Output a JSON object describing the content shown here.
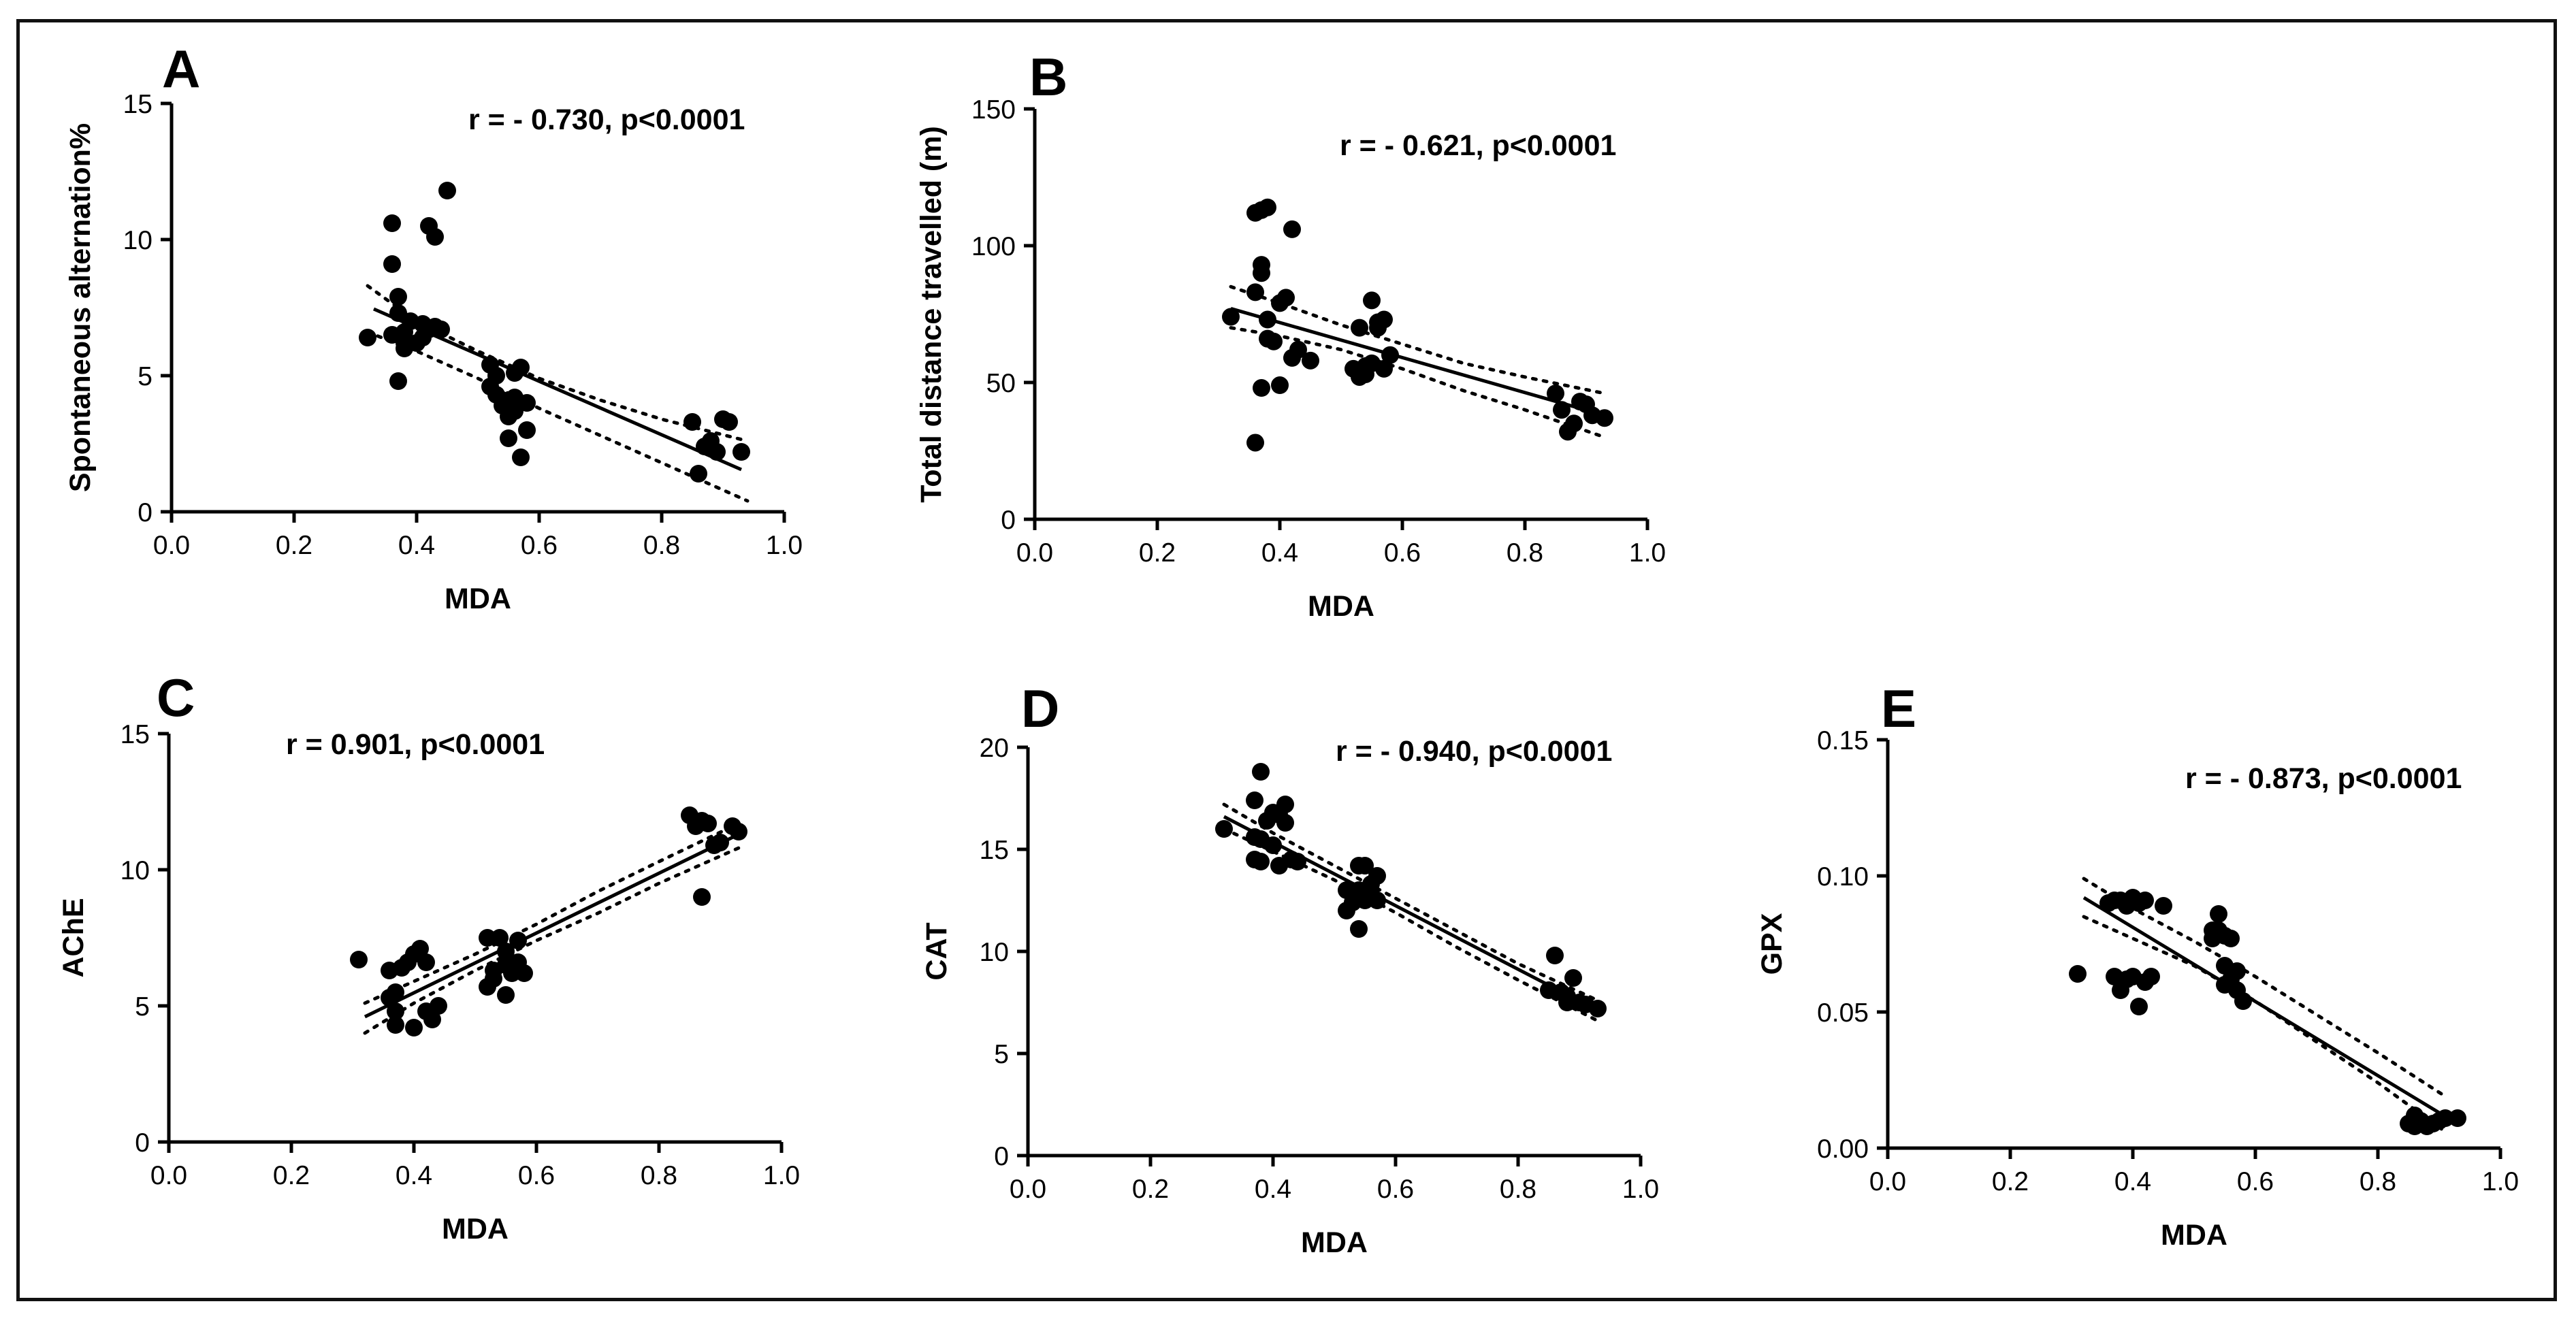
{
  "figure": {
    "title": ""
  },
  "chart_data": [
    {
      "type": "scatter",
      "panel_label": "A",
      "annotation": "r = - 0.730, p<0.0001",
      "xlabel": "MDA",
      "ylabel": "Spontaneous alternation%",
      "xlim": [
        0,
        1.0
      ],
      "ylim": [
        0,
        15
      ],
      "xticks": [
        0.0,
        0.2,
        0.4,
        0.6,
        0.8,
        1.0
      ],
      "xtick_labels": [
        "0.0",
        "0.2",
        "0.4",
        "0.6",
        "0.8",
        "1.0"
      ],
      "yticks": [
        0,
        5,
        10,
        15
      ],
      "ytick_labels": [
        "0",
        "5",
        "10",
        "15"
      ],
      "fit": {
        "x": [
          0.33,
          0.93
        ],
        "y": [
          7.45,
          1.55
        ]
      },
      "ci_upper": {
        "x": [
          0.32,
          0.4,
          0.5,
          0.6,
          0.7,
          0.8,
          0.94
        ],
        "y": [
          8.3,
          7.0,
          5.9,
          4.9,
          4.1,
          3.4,
          2.6
        ]
      },
      "ci_lower": {
        "x": [
          0.32,
          0.4,
          0.5,
          0.6,
          0.7,
          0.8,
          0.94
        ],
        "y": [
          6.6,
          5.9,
          4.9,
          3.8,
          2.8,
          1.8,
          0.4
        ]
      },
      "points": {
        "x": [
          0.32,
          0.36,
          0.36,
          0.37,
          0.37,
          0.38,
          0.38,
          0.38,
          0.39,
          0.4,
          0.41,
          0.42,
          0.43,
          0.42,
          0.43,
          0.44,
          0.45,
          0.37,
          0.41,
          0.36,
          0.52,
          0.53,
          0.53,
          0.54,
          0.54,
          0.55,
          0.55,
          0.56,
          0.56,
          0.56,
          0.57,
          0.57,
          0.58,
          0.58,
          0.52,
          0.85,
          0.86,
          0.87,
          0.88,
          0.89,
          0.9,
          0.91,
          0.93
        ],
        "y": [
          6.4,
          10.6,
          9.1,
          7.9,
          7.3,
          6.6,
          6.2,
          6.0,
          7.0,
          6.2,
          6.4,
          10.5,
          10.1,
          6.7,
          6.8,
          6.7,
          11.8,
          4.8,
          6.9,
          6.5,
          5.4,
          5.0,
          4.3,
          4.1,
          3.9,
          3.5,
          2.7,
          3.7,
          4.2,
          5.1,
          5.3,
          2.0,
          3.0,
          4.0,
          4.6,
          3.3,
          1.4,
          2.4,
          2.6,
          2.2,
          3.4,
          3.3,
          2.2
        ]
      }
    },
    {
      "type": "scatter",
      "panel_label": "B",
      "annotation": "r = - 0.621, p<0.0001",
      "xlabel": "MDA",
      "ylabel": "Total distance travelled (m)",
      "xlim": [
        0,
        1.0
      ],
      "ylim": [
        0,
        150
      ],
      "xticks": [
        0.0,
        0.2,
        0.4,
        0.6,
        0.8,
        1.0
      ],
      "xtick_labels": [
        "0.0",
        "0.2",
        "0.4",
        "0.6",
        "0.8",
        "1.0"
      ],
      "yticks": [
        0,
        50,
        100,
        150
      ],
      "ytick_labels": [
        "0",
        "50",
        "100",
        "150"
      ],
      "fit": {
        "x": [
          0.32,
          0.93
        ],
        "y": [
          77,
          38
        ]
      },
      "ci_upper": {
        "x": [
          0.32,
          0.4,
          0.5,
          0.6,
          0.7,
          0.8,
          0.93
        ],
        "y": [
          85,
          79,
          71,
          64,
          57,
          52,
          46
        ]
      },
      "ci_lower": {
        "x": [
          0.32,
          0.4,
          0.5,
          0.6,
          0.7,
          0.8,
          0.93
        ],
        "y": [
          70,
          67,
          62,
          55,
          47,
          40,
          30
        ]
      },
      "points": {
        "x": [
          0.32,
          0.36,
          0.37,
          0.38,
          0.36,
          0.37,
          0.37,
          0.38,
          0.39,
          0.4,
          0.41,
          0.42,
          0.42,
          0.43,
          0.45,
          0.38,
          0.4,
          0.37,
          0.36,
          0.52,
          0.53,
          0.54,
          0.55,
          0.55,
          0.56,
          0.56,
          0.57,
          0.57,
          0.58,
          0.54,
          0.53,
          0.86,
          0.87,
          0.88,
          0.89,
          0.9,
          0.91,
          0.93,
          0.85
        ],
        "y": [
          74,
          112,
          113,
          114,
          83,
          93,
          90,
          73,
          65,
          79,
          81,
          106,
          59,
          62,
          58,
          66,
          49,
          48,
          28,
          55,
          52,
          53,
          57,
          80,
          72,
          70,
          73,
          55,
          60,
          56,
          70,
          40,
          32,
          35,
          43,
          42,
          38,
          37,
          46
        ]
      }
    },
    {
      "type": "scatter",
      "panel_label": "C",
      "annotation": "r = 0.901, p<0.0001",
      "xlabel": "MDA",
      "ylabel": "AChE",
      "xlim": [
        0,
        1.0
      ],
      "ylim": [
        0,
        15
      ],
      "xticks": [
        0.0,
        0.2,
        0.4,
        0.6,
        0.8,
        1.0
      ],
      "xtick_labels": [
        "0.0",
        "0.2",
        "0.4",
        "0.6",
        "0.8",
        "1.0"
      ],
      "yticks": [
        0,
        5,
        10,
        15
      ],
      "ytick_labels": [
        "0",
        "5",
        "10",
        "15"
      ],
      "fit": {
        "x": [
          0.32,
          0.93
        ],
        "y": [
          4.6,
          11.3
        ]
      },
      "ci_upper": {
        "x": [
          0.32,
          0.4,
          0.5,
          0.6,
          0.7,
          0.8,
          0.93
        ],
        "y": [
          5.1,
          5.9,
          6.9,
          8.0,
          9.2,
          10.3,
          11.7
        ]
      },
      "ci_lower": {
        "x": [
          0.32,
          0.4,
          0.5,
          0.6,
          0.7,
          0.8,
          0.93
        ],
        "y": [
          4.0,
          5.1,
          6.3,
          7.4,
          8.4,
          9.5,
          10.8
        ]
      },
      "points": {
        "x": [
          0.31,
          0.36,
          0.36,
          0.37,
          0.37,
          0.38,
          0.39,
          0.4,
          0.4,
          0.41,
          0.42,
          0.43,
          0.44,
          0.37,
          0.42,
          0.52,
          0.52,
          0.53,
          0.54,
          0.55,
          0.55,
          0.56,
          0.56,
          0.57,
          0.57,
          0.58,
          0.55,
          0.53,
          0.85,
          0.86,
          0.87,
          0.88,
          0.89,
          0.9,
          0.92,
          0.93,
          0.87
        ],
        "y": [
          6.7,
          6.3,
          5.3,
          4.8,
          4.3,
          6.4,
          6.6,
          4.2,
          6.9,
          7.1,
          6.6,
          4.5,
          5.0,
          5.5,
          4.8,
          7.5,
          5.7,
          6.0,
          7.5,
          6.5,
          7.0,
          6.2,
          6.4,
          7.4,
          6.6,
          6.2,
          5.4,
          6.3,
          12.0,
          11.6,
          11.8,
          11.7,
          10.9,
          11.0,
          11.6,
          11.4,
          9.0
        ]
      }
    },
    {
      "type": "scatter",
      "panel_label": "D",
      "annotation": "r = - 0.940, p<0.0001",
      "xlabel": "MDA",
      "ylabel": "CAT",
      "xlim": [
        0,
        1.0
      ],
      "ylim": [
        0,
        20
      ],
      "xticks": [
        0.0,
        0.2,
        0.4,
        0.6,
        0.8,
        1.0
      ],
      "xtick_labels": [
        "0.0",
        "0.2",
        "0.4",
        "0.6",
        "0.8",
        "1.0"
      ],
      "yticks": [
        0,
        5,
        10,
        15,
        20
      ],
      "ytick_labels": [
        "0",
        "5",
        "10",
        "15",
        "20"
      ],
      "fit": {
        "x": [
          0.32,
          0.93
        ],
        "y": [
          16.6,
          7.1
        ]
      },
      "ci_upper": {
        "x": [
          0.32,
          0.4,
          0.5,
          0.6,
          0.7,
          0.8,
          0.93
        ],
        "y": [
          17.2,
          15.8,
          14.2,
          12.6,
          11.0,
          9.4,
          7.6
        ]
      },
      "ci_lower": {
        "x": [
          0.32,
          0.4,
          0.5,
          0.6,
          0.7,
          0.8,
          0.93
        ],
        "y": [
          16.0,
          14.9,
          13.5,
          11.9,
          10.2,
          8.6,
          6.6
        ]
      },
      "points": {
        "x": [
          0.32,
          0.37,
          0.38,
          0.38,
          0.37,
          0.39,
          0.4,
          0.4,
          0.41,
          0.41,
          0.42,
          0.42,
          0.43,
          0.44,
          0.38,
          0.37,
          0.52,
          0.52,
          0.53,
          0.54,
          0.54,
          0.55,
          0.55,
          0.56,
          0.56,
          0.57,
          0.57,
          0.54,
          0.53,
          0.85,
          0.86,
          0.87,
          0.88,
          0.89,
          0.9,
          0.91,
          0.93,
          0.88
        ],
        "y": [
          16.0,
          17.4,
          18.8,
          15.5,
          14.5,
          16.4,
          16.8,
          15.2,
          14.2,
          16.7,
          17.2,
          16.3,
          14.5,
          14.4,
          14.4,
          15.6,
          12.0,
          13.0,
          12.4,
          14.2,
          13.0,
          12.5,
          14.2,
          13.3,
          12.8,
          12.5,
          13.7,
          11.1,
          12.8,
          8.1,
          9.8,
          8.0,
          7.5,
          8.7,
          7.5,
          7.4,
          7.2,
          7.8
        ]
      }
    },
    {
      "type": "scatter",
      "panel_label": "E",
      "annotation": "r = - 0.873, p<0.0001",
      "xlabel": "MDA",
      "ylabel": "GPX",
      "xlim": [
        0,
        1.0
      ],
      "ylim": [
        0,
        0.15
      ],
      "xticks": [
        0.0,
        0.2,
        0.4,
        0.6,
        0.8,
        1.0
      ],
      "xtick_labels": [
        "0.0",
        "0.2",
        "0.4",
        "0.6",
        "0.8",
        "1.0"
      ],
      "yticks": [
        0,
        0.05,
        0.1,
        0.15
      ],
      "ytick_labels": [
        "0.00",
        "0.05",
        "0.10",
        "0.15"
      ],
      "fit": {
        "x": [
          0.32,
          0.9
        ],
        "y": [
          0.092,
          0.013
        ]
      },
      "ci_upper": {
        "x": [
          0.32,
          0.4,
          0.5,
          0.6,
          0.7,
          0.8,
          0.91
        ],
        "y": [
          0.099,
          0.088,
          0.076,
          0.063,
          0.049,
          0.035,
          0.019
        ]
      },
      "ci_lower": {
        "x": [
          0.32,
          0.4,
          0.5,
          0.6,
          0.7,
          0.8,
          0.91
        ],
        "y": [
          0.085,
          0.077,
          0.067,
          0.054,
          0.039,
          0.024,
          0.006
        ]
      },
      "points": {
        "x": [
          0.31,
          0.36,
          0.37,
          0.38,
          0.37,
          0.38,
          0.39,
          0.4,
          0.4,
          0.41,
          0.42,
          0.42,
          0.43,
          0.45,
          0.39,
          0.41,
          0.53,
          0.54,
          0.54,
          0.55,
          0.55,
          0.56,
          0.56,
          0.57,
          0.57,
          0.58,
          0.55,
          0.53,
          0.85,
          0.86,
          0.87,
          0.88,
          0.89,
          0.9,
          0.91,
          0.93,
          0.86
        ],
        "y": [
          0.064,
          0.09,
          0.091,
          0.091,
          0.063,
          0.058,
          0.062,
          0.063,
          0.092,
          0.052,
          0.061,
          0.091,
          0.063,
          0.089,
          0.089,
          0.09,
          0.077,
          0.086,
          0.08,
          0.067,
          0.078,
          0.077,
          0.062,
          0.058,
          0.065,
          0.054,
          0.06,
          0.08,
          0.009,
          0.008,
          0.01,
          0.008,
          0.009,
          0.01,
          0.011,
          0.011,
          0.012
        ]
      }
    }
  ]
}
